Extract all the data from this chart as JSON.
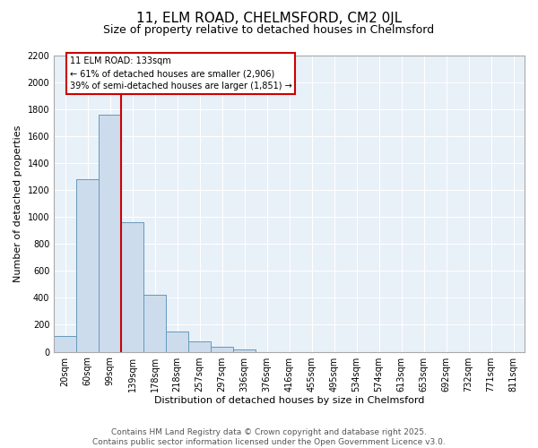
{
  "title": "11, ELM ROAD, CHELMSFORD, CM2 0JL",
  "subtitle": "Size of property relative to detached houses in Chelmsford",
  "xlabel": "Distribution of detached houses by size in Chelmsford",
  "ylabel": "Number of detached properties",
  "footer_line1": "Contains HM Land Registry data © Crown copyright and database right 2025.",
  "footer_line2": "Contains public sector information licensed under the Open Government Licence v3.0.",
  "categories": [
    "20sqm",
    "60sqm",
    "99sqm",
    "139sqm",
    "178sqm",
    "218sqm",
    "257sqm",
    "297sqm",
    "336sqm",
    "376sqm",
    "416sqm",
    "455sqm",
    "495sqm",
    "534sqm",
    "574sqm",
    "613sqm",
    "653sqm",
    "692sqm",
    "732sqm",
    "771sqm",
    "811sqm"
  ],
  "values": [
    120,
    1280,
    1760,
    960,
    420,
    150,
    80,
    40,
    20,
    0,
    0,
    0,
    0,
    0,
    0,
    0,
    0,
    0,
    0,
    0,
    0
  ],
  "bar_color": "#ccdcec",
  "bar_edge_color": "#6699bb",
  "vline_x": 2.5,
  "vline_color": "#cc0000",
  "ylim_max": 2200,
  "yticks": [
    0,
    200,
    400,
    600,
    800,
    1000,
    1200,
    1400,
    1600,
    1800,
    2000,
    2200
  ],
  "annotation_line1": "11 ELM ROAD: 133sqm",
  "annotation_line2": "← 61% of detached houses are smaller (2,906)",
  "annotation_line3": "39% of semi-detached houses are larger (1,851) →",
  "annotation_box_facecolor": "white",
  "annotation_box_edgecolor": "#cc0000",
  "plot_bg_color": "#e8f0f8",
  "fig_bg_color": "#ffffff",
  "grid_color": "#ffffff",
  "title_fontsize": 11,
  "subtitle_fontsize": 9,
  "axis_label_fontsize": 8,
  "tick_fontsize": 7,
  "footer_fontsize": 6.5,
  "footer_color": "#555555"
}
